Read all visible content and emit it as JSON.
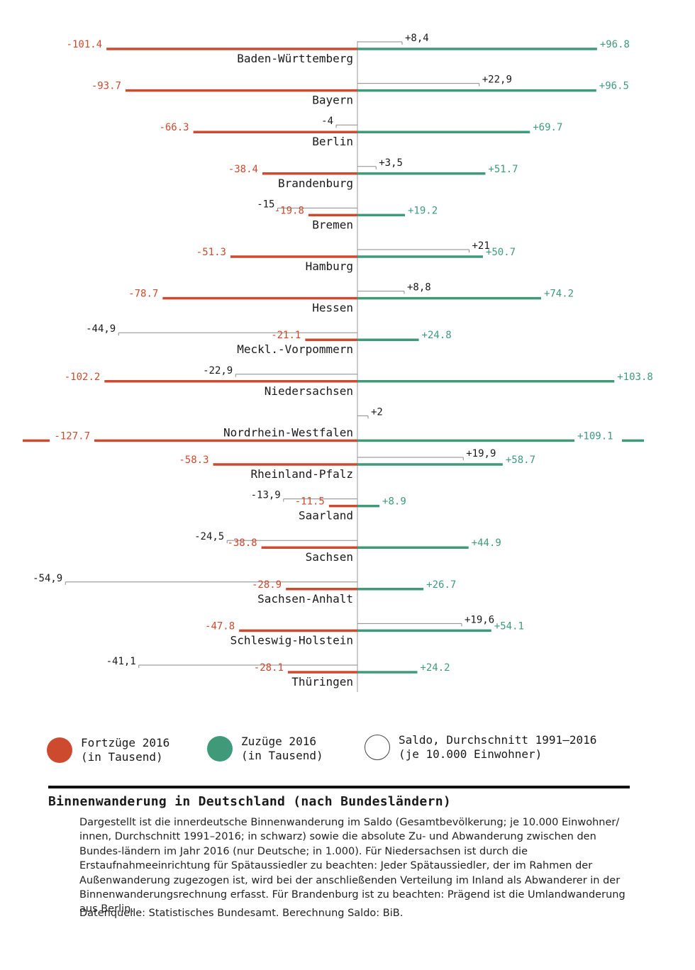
{
  "colors": {
    "fortzuege": "#cd4a2f",
    "zuzuege": "#3f9a7a",
    "saldo": "#8a8a8a",
    "text": "#1a1a1a"
  },
  "chart_data": {
    "type": "bar",
    "orientation": "horizontal-diverging",
    "categories": [
      "Baden-Württemberg",
      "Bayern",
      "Berlin",
      "Brandenburg",
      "Bremen",
      "Hamburg",
      "Hessen",
      "Meckl.-Vorpommern",
      "Niedersachsen",
      "Nordrhein-Westfalen",
      "Rheinland-Pfalz",
      "Saarland",
      "Sachsen",
      "Sachsen-Anhalt",
      "Schleswig-Holstein",
      "Thüringen"
    ],
    "series": [
      {
        "name": "Fortzüge 2016 (in Tausend)",
        "values": [
          -101.4,
          -93.7,
          -66.3,
          -38.4,
          -19.8,
          -51.3,
          -78.7,
          -21.1,
          -102.2,
          -127.7,
          -58.3,
          -11.5,
          -38.8,
          -28.9,
          -47.8,
          -28.1
        ],
        "labels": [
          "-101.4",
          "-93.7",
          "-66.3",
          "-38.4",
          "-19.8",
          "-51.3",
          "-78.7",
          "-21.1",
          "-102.2",
          "-127.7",
          "-58.3",
          "-11.5",
          "-38.8",
          "-28.9",
          "-47.8",
          "-28.1"
        ]
      },
      {
        "name": "Zuzüge 2016 (in Tausend)",
        "values": [
          96.8,
          96.5,
          69.7,
          51.7,
          19.2,
          50.7,
          74.2,
          24.8,
          103.8,
          109.1,
          58.7,
          8.9,
          44.9,
          26.7,
          54.1,
          24.2
        ],
        "labels": [
          "+96.8",
          "+96.5",
          "+69.7",
          "+51.7",
          "+19.2",
          "+50.7",
          "+74.2",
          "+24.8",
          "+103.8",
          "+109.1",
          "+58.7",
          "+8.9",
          "+44.9",
          "+26.7",
          "+54.1",
          "+24.2"
        ]
      },
      {
        "name": "Saldo, Durchschnitt 1991–2016 (je 10.000 Einwohner)",
        "values": [
          8.4,
          22.9,
          -4,
          3.5,
          -15,
          21,
          8.8,
          -44.9,
          -22.9,
          2,
          19.9,
          -13.9,
          -24.5,
          -54.9,
          19.6,
          -41.1
        ],
        "labels": [
          "+8,4",
          "+22,9",
          "-4",
          "+3,5",
          "-15",
          "+21",
          "+8,8",
          "-44,9",
          "-22,9",
          "+2",
          "+19,9",
          "-13,9",
          "-24,5",
          "-54,9",
          "+19,6",
          "-41,1"
        ]
      }
    ]
  },
  "legend": [
    {
      "label": "Fortzüge 2016\n(in Tausend)"
    },
    {
      "label": "Zuzüge 2016\n(in Tausend)"
    },
    {
      "label": "Saldo, Durchschnitt 1991–2016\n(je 10.000 Einwohner)"
    }
  ],
  "title": "Binnenwanderung in Deutschland (nach Bundesländern)",
  "description": "Dargestellt ist die innerdeutsche Binnenwanderung im Saldo (Gesamtbevölkerung; je 10.000 Einwohner/ innen, Durchschnitt 1991–2016; in schwarz) sowie die absolute Zu- und Abwanderung zwischen den Bundes-ländern im Jahr 2016 (nur Deutsche; in 1.000). Für Niedersachsen ist durch die Erstaufnahmeeinrichtung für Spätaussiedler zu beachten: Jeder Spätaussiedler, der im Rahmen der Außenwanderung zugezogen ist, wird bei der anschließenden Verteilung im Inland als Abwanderer in der Binnenwanderungsrechnung erfasst. Für Brandenburg ist zu beachten: Prägend ist die Umlandwanderung aus Berlin.",
  "source": "Datenquelle: Statistisches Bundesamt. Berechnung Saldo: BiB."
}
